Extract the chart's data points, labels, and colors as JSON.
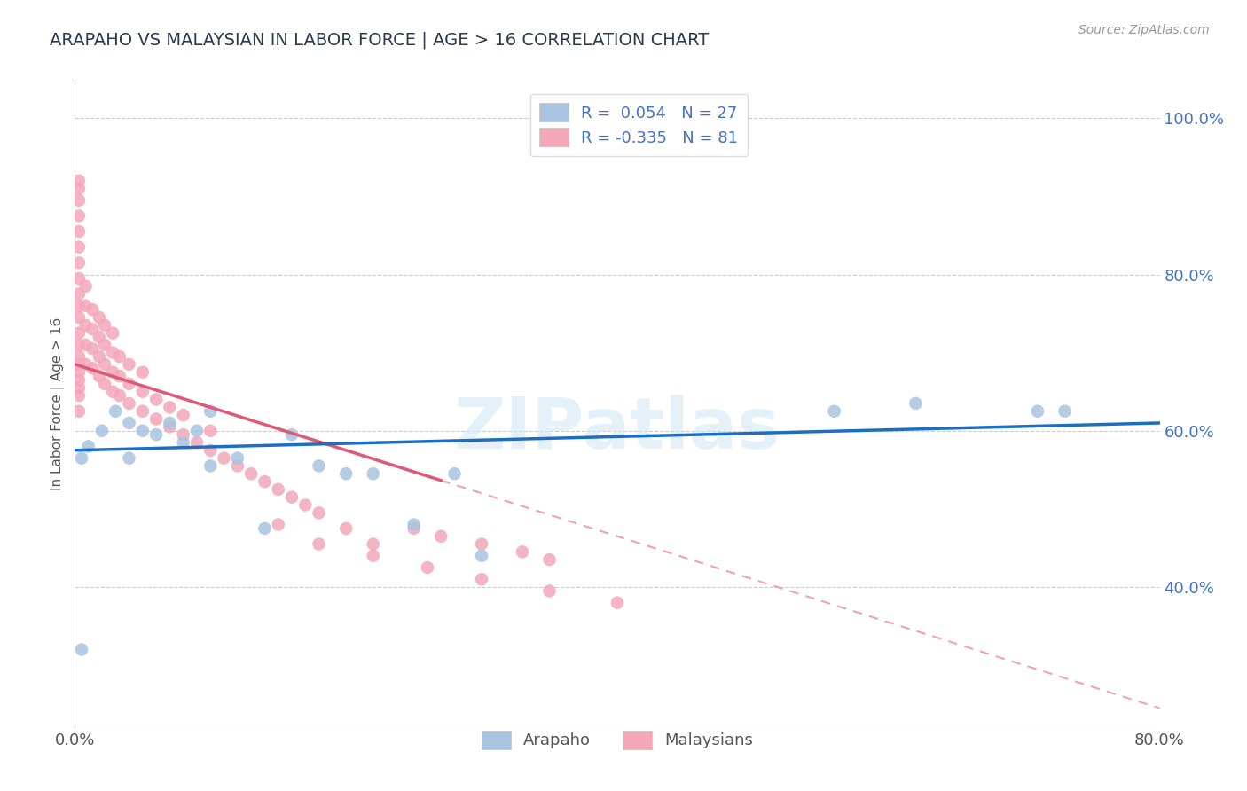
{
  "title": "ARAPAHO VS MALAYSIAN IN LABOR FORCE | AGE > 16 CORRELATION CHART",
  "source_text": "Source: ZipAtlas.com",
  "ylabel": "In Labor Force | Age > 16",
  "xlim": [
    0.0,
    0.8
  ],
  "ylim": [
    0.22,
    1.05
  ],
  "ytick_positions": [
    0.4,
    0.6,
    0.8,
    1.0
  ],
  "ytick_labels": [
    "40.0%",
    "60.0%",
    "80.0%",
    "100.0%"
  ],
  "watermark": "ZIPatlas",
  "legend_R_arapaho": "0.054",
  "legend_N_arapaho": "27",
  "legend_R_malaysian": "-0.335",
  "legend_N_malaysian": "81",
  "arapaho_color": "#a8c4e0",
  "malaysian_color": "#f4a7b9",
  "arapaho_line_color": "#1a6fc4",
  "malaysian_line_solid_color": "#e05878",
  "malaysian_line_dash_color": "#f0a0b8",
  "grid_color": "#cccccc",
  "arapaho_x": [
    0.005,
    0.005,
    0.01,
    0.02,
    0.03,
    0.04,
    0.04,
    0.05,
    0.06,
    0.07,
    0.08,
    0.09,
    0.1,
    0.1,
    0.12,
    0.14,
    0.16,
    0.18,
    0.2,
    0.22,
    0.25,
    0.28,
    0.3,
    0.56,
    0.62,
    0.71,
    0.73
  ],
  "arapaho_y": [
    0.32,
    0.565,
    0.58,
    0.6,
    0.625,
    0.61,
    0.565,
    0.6,
    0.595,
    0.61,
    0.585,
    0.6,
    0.555,
    0.625,
    0.565,
    0.475,
    0.595,
    0.555,
    0.545,
    0.545,
    0.48,
    0.545,
    0.44,
    0.625,
    0.635,
    0.625,
    0.625
  ],
  "malaysian_x": [
    0.003,
    0.003,
    0.003,
    0.003,
    0.003,
    0.003,
    0.003,
    0.003,
    0.003,
    0.003,
    0.003,
    0.003,
    0.003,
    0.003,
    0.003,
    0.003,
    0.003,
    0.003,
    0.003,
    0.003,
    0.008,
    0.008,
    0.008,
    0.008,
    0.008,
    0.013,
    0.013,
    0.013,
    0.013,
    0.018,
    0.018,
    0.018,
    0.018,
    0.022,
    0.022,
    0.022,
    0.022,
    0.028,
    0.028,
    0.028,
    0.028,
    0.033,
    0.033,
    0.033,
    0.04,
    0.04,
    0.04,
    0.05,
    0.05,
    0.05,
    0.06,
    0.06,
    0.07,
    0.07,
    0.08,
    0.08,
    0.09,
    0.1,
    0.1,
    0.11,
    0.12,
    0.13,
    0.14,
    0.15,
    0.16,
    0.17,
    0.18,
    0.2,
    0.22,
    0.25,
    0.27,
    0.3,
    0.33,
    0.35,
    0.15,
    0.18,
    0.22,
    0.26,
    0.3,
    0.35,
    0.4
  ],
  "malaysian_y": [
    0.625,
    0.645,
    0.655,
    0.665,
    0.675,
    0.685,
    0.695,
    0.71,
    0.725,
    0.745,
    0.76,
    0.775,
    0.795,
    0.815,
    0.835,
    0.855,
    0.875,
    0.895,
    0.91,
    0.92,
    0.685,
    0.71,
    0.735,
    0.76,
    0.785,
    0.68,
    0.705,
    0.73,
    0.755,
    0.67,
    0.695,
    0.72,
    0.745,
    0.66,
    0.685,
    0.71,
    0.735,
    0.65,
    0.675,
    0.7,
    0.725,
    0.645,
    0.67,
    0.695,
    0.635,
    0.66,
    0.685,
    0.625,
    0.65,
    0.675,
    0.615,
    0.64,
    0.605,
    0.63,
    0.595,
    0.62,
    0.585,
    0.575,
    0.6,
    0.565,
    0.555,
    0.545,
    0.535,
    0.525,
    0.515,
    0.505,
    0.495,
    0.475,
    0.455,
    0.475,
    0.465,
    0.455,
    0.445,
    0.435,
    0.48,
    0.455,
    0.44,
    0.425,
    0.41,
    0.395,
    0.38
  ]
}
